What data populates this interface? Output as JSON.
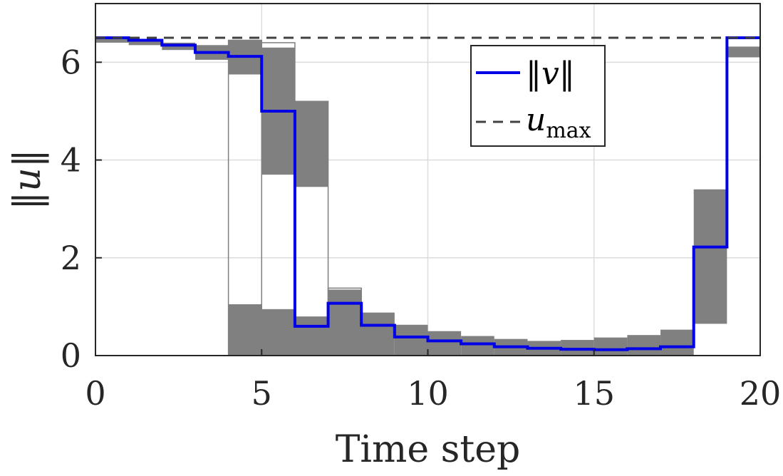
{
  "chart_data": {
    "type": "line",
    "title": "",
    "xlabel": "Time step",
    "ylabel": "‖u‖",
    "xlim": [
      0,
      20
    ],
    "ylim": [
      0,
      7.2
    ],
    "xticks": [
      0,
      5,
      10,
      15,
      20
    ],
    "yticks": [
      0,
      2,
      4,
      6
    ],
    "grid": true,
    "legend_position": "top-right",
    "colors": {
      "v_line": "#0000e6",
      "u_max_line": "#404040",
      "samples_band": "#808080",
      "sample_outline": "#7f7f7f"
    },
    "u_max": 6.5,
    "series": [
      {
        "name": "‖v‖",
        "style": "stairs",
        "x": [
          0,
          1,
          2,
          3,
          4,
          5,
          6,
          7,
          8,
          9,
          10,
          11,
          12,
          13,
          14,
          15,
          16,
          17,
          18,
          19,
          20
        ],
        "values": [
          6.5,
          6.45,
          6.35,
          6.2,
          6.12,
          5.0,
          0.6,
          1.07,
          0.62,
          0.38,
          0.3,
          0.24,
          0.18,
          0.15,
          0.13,
          0.12,
          0.14,
          0.18,
          2.22,
          6.5,
          6.5
        ]
      },
      {
        "name": "u_max",
        "style": "dashed",
        "x": [
          0,
          20
        ],
        "values": [
          6.5,
          6.5
        ]
      }
    ],
    "sample_bands": [
      {
        "step": 0,
        "low": 6.4,
        "high": 6.5
      },
      {
        "step": 1,
        "low": 6.35,
        "high": 6.45
      },
      {
        "step": 2,
        "low": 6.25,
        "high": 6.4
      },
      {
        "step": 3,
        "low": 6.05,
        "high": 6.35
      },
      {
        "step": 4,
        "low": 0.0,
        "high": 1.05
      },
      {
        "step": 5,
        "low": 0.0,
        "high": 0.95
      },
      {
        "step": 6,
        "low": 0.0,
        "high": 0.8
      },
      {
        "step": 7,
        "low": 0.0,
        "high": 1.25
      },
      {
        "step": 8,
        "low": 0.0,
        "high": 0.88
      },
      {
        "step": 9,
        "low": 0.0,
        "high": 0.63
      },
      {
        "step": 10,
        "low": 0.0,
        "high": 0.5
      },
      {
        "step": 11,
        "low": 0.0,
        "high": 0.4
      },
      {
        "step": 12,
        "low": 0.0,
        "high": 0.34
      },
      {
        "step": 13,
        "low": 0.0,
        "high": 0.3
      },
      {
        "step": 14,
        "low": 0.0,
        "high": 0.32
      },
      {
        "step": 15,
        "low": 0.0,
        "high": 0.37
      },
      {
        "step": 16,
        "low": 0.0,
        "high": 0.42
      },
      {
        "step": 17,
        "low": 0.0,
        "high": 0.53
      },
      {
        "step": 18,
        "low": 0.65,
        "high": 3.4
      },
      {
        "step": 19,
        "low": 6.1,
        "high": 6.32
      }
    ],
    "sample_bands_upper": [
      {
        "step": 4,
        "low": 5.75,
        "high": 6.45
      },
      {
        "step": 5,
        "low": 3.7,
        "high": 6.3
      },
      {
        "step": 6,
        "low": 3.45,
        "high": 5.2
      },
      {
        "step": 7,
        "low": 0.0,
        "high": 1.35
      }
    ],
    "sample_outlines": [
      {
        "step": 4,
        "low": 0.0,
        "high": 6.45
      },
      {
        "step": 5,
        "low": 0.0,
        "high": 6.4
      },
      {
        "step": 6,
        "low": 0.0,
        "high": 5.2
      },
      {
        "step": 7,
        "low": 0.0,
        "high": 1.38
      }
    ]
  },
  "legend": {
    "v_label": "‖v‖",
    "umax_label_main": "u",
    "umax_label_sub": "max"
  }
}
